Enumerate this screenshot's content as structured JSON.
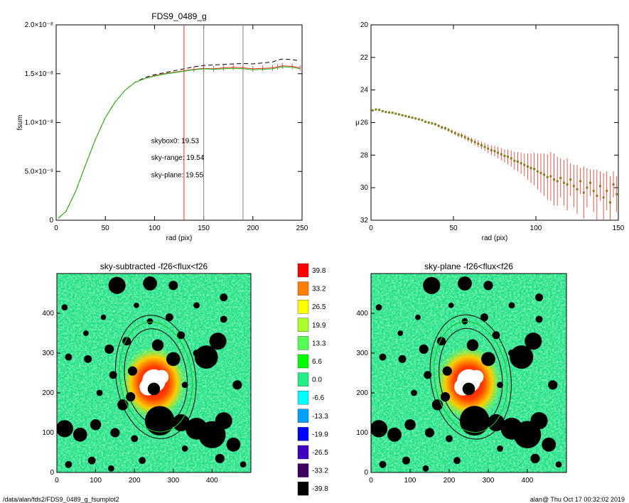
{
  "footer": {
    "path": "/data/alan/fds2/FDS9_0489_g_fsumplot2",
    "stamp": "alan@  Thu Oct 17 00:32:02 2019"
  },
  "chart_data": [
    {
      "type": "line",
      "title": "FDS9_0489_g",
      "xlabel": "rad (pix)",
      "ylabel": "fsum",
      "xlim": [
        0,
        250
      ],
      "ylim": [
        0,
        2e-08
      ],
      "xticks": [
        0,
        50,
        100,
        150,
        200,
        250
      ],
      "yticks": [
        {
          "value": 0,
          "label": "0"
        },
        {
          "value": 5e-09,
          "label": "5.0×10⁻⁹"
        },
        {
          "value": 1e-08,
          "label": "1.0×10⁻⁸"
        },
        {
          "value": 1.5e-08,
          "label": "1.5×10⁻⁸"
        },
        {
          "value": 2e-08,
          "label": "2.0×10⁻⁸"
        }
      ],
      "vlines": [
        {
          "x": 130,
          "color": "#e03020"
        },
        {
          "x": 150,
          "color": "#808080"
        },
        {
          "x": 190,
          "color": "#808080"
        }
      ],
      "series": [
        {
          "color": "#000000",
          "style": "dashed",
          "x": [
            2,
            10,
            20,
            30,
            40,
            50,
            60,
            70,
            80,
            90,
            100,
            110,
            120,
            130,
            140,
            150,
            160,
            170,
            180,
            190,
            200,
            210,
            220,
            225,
            230,
            240,
            248
          ],
          "y": [
            2e-10,
            9e-10,
            3e-09,
            5.7e-09,
            8.3e-09,
            1.05e-08,
            1.21e-08,
            1.33e-08,
            1.41e-08,
            1.46e-08,
            1.49e-08,
            1.51e-08,
            1.53e-08,
            1.55e-08,
            1.57e-08,
            1.585e-08,
            1.59e-08,
            1.595e-08,
            1.6e-08,
            1.605e-08,
            1.6e-08,
            1.61e-08,
            1.62e-08,
            1.64e-08,
            1.65e-08,
            1.645e-08,
            1.63e-08
          ]
        },
        {
          "color": "#e03020",
          "style": "solid",
          "x": [
            2,
            10,
            20,
            30,
            40,
            50,
            60,
            70,
            80,
            90,
            100,
            110,
            120,
            130,
            140,
            150,
            160,
            170,
            180,
            190,
            200,
            210,
            220,
            225,
            230,
            240,
            248
          ],
          "y": [
            2e-10,
            9e-10,
            3e-09,
            5.7e-09,
            8.3e-09,
            1.05e-08,
            1.21e-08,
            1.33e-08,
            1.41e-08,
            1.45e-08,
            1.48e-08,
            1.5e-08,
            1.515e-08,
            1.53e-08,
            1.545e-08,
            1.555e-08,
            1.55e-08,
            1.56e-08,
            1.565e-08,
            1.56e-08,
            1.55e-08,
            1.555e-08,
            1.56e-08,
            1.57e-08,
            1.58e-08,
            1.575e-08,
            1.56e-08
          ]
        },
        {
          "color": "#20c020",
          "style": "solid",
          "x": [
            2,
            10,
            20,
            30,
            40,
            50,
            60,
            70,
            80,
            90,
            100,
            110,
            120,
            130,
            140,
            150,
            160,
            170,
            180,
            190,
            200,
            210,
            220,
            225,
            230,
            240,
            248
          ],
          "y": [
            2e-10,
            9e-10,
            3e-09,
            5.7e-09,
            8.3e-09,
            1.05e-08,
            1.21e-08,
            1.33e-08,
            1.41e-08,
            1.45e-08,
            1.475e-08,
            1.495e-08,
            1.51e-08,
            1.525e-08,
            1.54e-08,
            1.55e-08,
            1.545e-08,
            1.55e-08,
            1.555e-08,
            1.55e-08,
            1.54e-08,
            1.545e-08,
            1.55e-08,
            1.56e-08,
            1.57e-08,
            1.565e-08,
            1.55e-08
          ]
        }
      ],
      "annotations": [
        {
          "text": "skybox0: 19.53",
          "color": "#000000",
          "x": 75,
          "y": 7.9e-09
        },
        {
          "text": "sky-range: 19.54",
          "color": "#e03020",
          "x": 75,
          "y": 6.2e-09
        },
        {
          "text": "sky-plane: 19.55",
          "color": "#20c020",
          "x": 75,
          "y": 4.4e-09
        }
      ]
    },
    {
      "type": "scatter",
      "title": "",
      "xlabel": "rad (pix)",
      "ylabel": "μ",
      "xlim": [
        0,
        150
      ],
      "ylim": [
        20,
        32
      ],
      "y_inverted": true,
      "xticks": [
        0,
        50,
        100,
        150
      ],
      "yticks": [
        20,
        22,
        24,
        26,
        28,
        30,
        32
      ],
      "series": [
        {
          "color": "#808020",
          "x": [
            1,
            3,
            5,
            7,
            9,
            11,
            13,
            15,
            17,
            19,
            21,
            23,
            25,
            27,
            29,
            31,
            33,
            35,
            37,
            39,
            41,
            43,
            45,
            47,
            49,
            51,
            53,
            55,
            57,
            59,
            61,
            63,
            65,
            67,
            69,
            71,
            73,
            75,
            77,
            79,
            81,
            83,
            85,
            87,
            89,
            91,
            93,
            95,
            97,
            99,
            101,
            103,
            105,
            107,
            109,
            111,
            113,
            115,
            117,
            119,
            121,
            123,
            125,
            127,
            129,
            131,
            133,
            135,
            137,
            139,
            141,
            143,
            145,
            147,
            149
          ],
          "y": [
            25.25,
            25.2,
            25.22,
            25.3,
            25.35,
            25.38,
            25.4,
            25.45,
            25.5,
            25.55,
            25.6,
            25.65,
            25.7,
            25.75,
            25.8,
            25.85,
            25.95,
            26.0,
            26.05,
            26.1,
            26.2,
            26.3,
            26.35,
            26.45,
            26.55,
            26.65,
            26.75,
            26.8,
            26.9,
            27.0,
            27.1,
            27.2,
            27.3,
            27.4,
            27.5,
            27.6,
            27.7,
            27.75,
            27.85,
            27.95,
            28.05,
            28.1,
            28.2,
            28.35,
            28.4,
            28.5,
            28.6,
            28.7,
            28.8,
            28.85,
            29.0,
            29.1,
            29.2,
            29.35,
            29.3,
            29.5,
            29.6,
            29.4,
            29.7,
            29.8,
            29.5,
            29.9,
            30.1,
            29.6,
            30.3,
            30.0,
            29.7,
            30.2,
            30.5,
            29.9,
            30.6,
            30.2,
            30.9,
            29.8,
            30.4
          ],
          "err": [
            0.03,
            0.03,
            0.03,
            0.03,
            0.03,
            0.04,
            0.04,
            0.04,
            0.04,
            0.05,
            0.05,
            0.05,
            0.05,
            0.06,
            0.06,
            0.06,
            0.07,
            0.07,
            0.08,
            0.08,
            0.09,
            0.1,
            0.1,
            0.11,
            0.12,
            0.13,
            0.14,
            0.15,
            0.16,
            0.17,
            0.18,
            0.2,
            0.21,
            0.23,
            0.25,
            0.27,
            0.3,
            0.32,
            0.35,
            0.38,
            0.4,
            0.45,
            0.5,
            0.55,
            0.6,
            0.65,
            0.7,
            0.8,
            0.9,
            1.0,
            1.1,
            1.2,
            1.3,
            1.4,
            1.5,
            1.6,
            1.5,
            1.2,
            1.4,
            1.6,
            1.0,
            1.3,
            1.5,
            0.8,
            1.6,
            1.2,
            0.8,
            1.3,
            1.6,
            0.9,
            1.5,
            1.2,
            1.6,
            0.8,
            1.1
          ]
        }
      ]
    },
    {
      "type": "heatmap",
      "title": "sky-subtracted -f26<flux<f26",
      "xlim": [
        0,
        500
      ],
      "ylim": [
        0,
        500
      ],
      "xticks": [
        0,
        100,
        200,
        300,
        400
      ],
      "yticks": [
        0,
        100,
        200,
        300,
        400
      ],
      "ellipses": [
        {
          "cx": 255,
          "cy": 240,
          "rx": 205,
          "ry": 320,
          "angle": -8,
          "color": "#000000"
        },
        {
          "cx": 255,
          "cy": 240,
          "rx": 160,
          "ry": 250,
          "angle": -8,
          "color": "#000000"
        },
        {
          "cx": 255,
          "cy": 240,
          "rx": 185,
          "ry": 285,
          "angle": -8,
          "color": "#20c020"
        }
      ]
    },
    {
      "type": "heatmap",
      "title": "sky-plane -f26<flux<f26",
      "xlim": [
        0,
        500
      ],
      "ylim": [
        0,
        500
      ],
      "xticks": [
        0,
        100,
        200,
        300,
        400
      ],
      "yticks": [
        0,
        100,
        200,
        300,
        400
      ],
      "ellipses": [
        {
          "cx": 255,
          "cy": 240,
          "rx": 205,
          "ry": 320,
          "angle": -8,
          "color": "#000000"
        },
        {
          "cx": 255,
          "cy": 240,
          "rx": 160,
          "ry": 250,
          "angle": -8,
          "color": "#000000"
        },
        {
          "cx": 255,
          "cy": 240,
          "rx": 185,
          "ry": 285,
          "angle": -8,
          "color": "#20c020"
        }
      ]
    }
  ],
  "colorbar": {
    "labels": [
      "39.8",
      "33.2",
      "26.5",
      "19.9",
      "13.3",
      "6.6",
      "0.0",
      "-6.6",
      "-13.3",
      "-19.9",
      "-26.5",
      "-33.2",
      "-39.8"
    ],
    "colors": [
      "#ff0000",
      "#ff7f00",
      "#ffff00",
      "#aaff2a",
      "#55ff55",
      "#00ff00",
      "#22ee88",
      "#00ffff",
      "#00a0ff",
      "#0000ff",
      "#4000c0",
      "#400060",
      "#000000"
    ]
  },
  "masks": [
    [
      155,
      470,
      22
    ],
    [
      240,
      475,
      18
    ],
    [
      300,
      470,
      12
    ],
    [
      430,
      440,
      10
    ],
    [
      20,
      415,
      8
    ],
    [
      120,
      390,
      7
    ],
    [
      290,
      390,
      10
    ],
    [
      430,
      385,
      9
    ],
    [
      75,
      350,
      7
    ],
    [
      180,
      330,
      11
    ],
    [
      135,
      310,
      12
    ],
    [
      320,
      345,
      10
    ],
    [
      260,
      320,
      15
    ],
    [
      300,
      285,
      18
    ],
    [
      385,
      290,
      30
    ],
    [
      415,
      330,
      22
    ],
    [
      80,
      285,
      10
    ],
    [
      30,
      290,
      9
    ],
    [
      195,
      255,
      12
    ],
    [
      250,
      210,
      16
    ],
    [
      190,
      190,
      12
    ],
    [
      145,
      245,
      10
    ],
    [
      330,
      220,
      8
    ],
    [
      170,
      170,
      14
    ],
    [
      265,
      130,
      38
    ],
    [
      320,
      125,
      22
    ],
    [
      360,
      110,
      28
    ],
    [
      400,
      95,
      35
    ],
    [
      430,
      130,
      22
    ],
    [
      455,
      70,
      18
    ],
    [
      100,
      120,
      14
    ],
    [
      60,
      95,
      18
    ],
    [
      20,
      110,
      22
    ],
    [
      150,
      100,
      12
    ],
    [
      200,
      85,
      9
    ],
    [
      330,
      60,
      8
    ],
    [
      420,
      35,
      12
    ],
    [
      90,
      30,
      10
    ],
    [
      220,
      30,
      9
    ],
    [
      480,
      20,
      8
    ],
    [
      140,
      10,
      8
    ],
    [
      30,
      20,
      9
    ],
    [
      465,
      220,
      12
    ],
    [
      110,
      200,
      8
    ],
    [
      360,
      300,
      9
    ],
    [
      240,
      380,
      8
    ],
    [
      205,
      420,
      7
    ],
    [
      360,
      420,
      8
    ]
  ],
  "white_core": [
    [
      250,
      230,
      30
    ],
    [
      235,
      215,
      22
    ],
    [
      270,
      240,
      18
    ]
  ]
}
